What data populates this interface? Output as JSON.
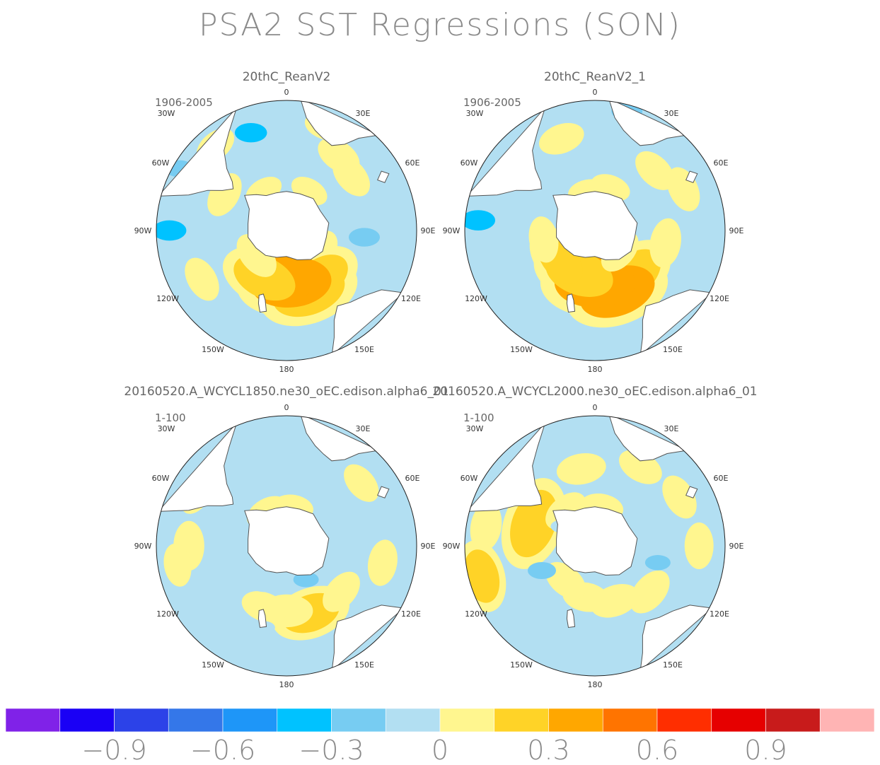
{
  "chart_data": {
    "type": "polar-contour-map",
    "title": "PSA2 SST Regressions (SON)",
    "panels": [
      {
        "title": "20thC_ReanV2",
        "period": "1906-2005",
        "positive_blobs": [
          [
            125,
            12,
            0.12
          ],
          [
            145,
            18,
            0.2
          ],
          [
            160,
            20,
            0.28
          ],
          [
            175,
            16,
            0.32
          ],
          [
            190,
            14,
            0.3
          ],
          [
            205,
            16,
            0.22
          ],
          [
            230,
            12,
            0.12
          ],
          [
            240,
            30,
            0.1
          ],
          [
            300,
            22,
            0.1
          ],
          [
            320,
            34,
            0.08
          ],
          [
            35,
            28,
            0.1
          ],
          [
            50,
            26,
            0.1
          ],
          [
            20,
            34,
            0.06
          ],
          [
            330,
            14,
            0.05
          ],
          [
            30,
            14,
            0.05
          ]
        ],
        "negative_blobs": [
          [
            270,
            36,
            -0.35
          ],
          [
            300,
            38,
            -0.25
          ],
          [
            95,
            24,
            -0.3
          ],
          [
            340,
            32,
            -0.32
          ]
        ]
      },
      {
        "title": "20thC_ReanV2_1",
        "period": "1906-2005",
        "positive_blobs": [
          [
            140,
            18,
            0.22
          ],
          [
            160,
            20,
            0.3
          ],
          [
            180,
            16,
            0.32
          ],
          [
            200,
            14,
            0.25
          ],
          [
            230,
            14,
            0.16
          ],
          [
            260,
            16,
            0.1
          ],
          [
            340,
            30,
            0.1
          ],
          [
            45,
            26,
            0.1
          ],
          [
            65,
            30,
            0.1
          ],
          [
            100,
            22,
            0.12
          ],
          [
            130,
            10,
            0.1
          ],
          [
            350,
            12,
            0.06
          ],
          [
            20,
            14,
            0.06
          ]
        ],
        "negative_blobs": [
          [
            275,
            36,
            -0.35
          ],
          [
            15,
            38,
            -0.3
          ],
          [
            300,
            34,
            -0.1
          ]
        ]
      },
      {
        "title": "20160520.A_WCYCL1850.ne30_oEC.edison.alpha6_01",
        "period": "1-100",
        "positive_blobs": [
          [
            270,
            30,
            0.12
          ],
          [
            260,
            34,
            0.08
          ],
          [
            160,
            22,
            0.18
          ],
          [
            180,
            20,
            0.14
          ],
          [
            200,
            20,
            0.1
          ],
          [
            130,
            22,
            0.1
          ],
          [
            100,
            30,
            0.1
          ],
          [
            330,
            12,
            0.08
          ],
          [
            50,
            30,
            0.08
          ],
          [
            300,
            32,
            0.08
          ],
          [
            10,
            12,
            0.06
          ]
        ],
        "negative_blobs": [
          [
            150,
            12,
            -0.2
          ],
          [
            210,
            14,
            -0.15
          ],
          [
            195,
            26,
            -0.12
          ],
          [
            260,
            12,
            -0.1
          ],
          [
            80,
            14,
            -0.08
          ],
          [
            345,
            28,
            -0.1
          ]
        ]
      },
      {
        "title": "20160520.A_WCYCL2000.ne30_oEC.edison.alpha6_01",
        "period": "1-100",
        "positive_blobs": [
          [
            290,
            20,
            0.25
          ],
          [
            280,
            34,
            0.12
          ],
          [
            255,
            36,
            0.15
          ],
          [
            350,
            24,
            0.12
          ],
          [
            30,
            28,
            0.1
          ],
          [
            60,
            30,
            0.1
          ],
          [
            90,
            32,
            0.1
          ],
          [
            130,
            22,
            0.12
          ],
          [
            160,
            18,
            0.12
          ],
          [
            190,
            16,
            0.1
          ],
          [
            220,
            14,
            0.1
          ],
          [
            320,
            14,
            0.1
          ],
          [
            10,
            12,
            0.08
          ]
        ],
        "negative_blobs": [
          [
            245,
            18,
            -0.25
          ],
          [
            105,
            20,
            -0.2
          ],
          [
            200,
            28,
            -0.12
          ],
          [
            300,
            12,
            -0.12
          ]
        ]
      }
    ],
    "longitude_labels": [
      "0",
      "30E",
      "60E",
      "90E",
      "120E",
      "150E",
      "180",
      "150W",
      "120W",
      "90W",
      "60W",
      "30W"
    ],
    "colorbar": {
      "levels": [
        -1.05,
        -0.9,
        -0.75,
        -0.6,
        -0.45,
        -0.3,
        -0.15,
        0,
        0.15,
        0.3,
        0.45,
        0.6,
        0.75,
        0.9,
        1.05
      ],
      "colors": [
        "#8022e8",
        "#1a00f5",
        "#2c42e8",
        "#3477e9",
        "#1e96f8",
        "#00c2ff",
        "#77ccf2",
        "#b2dff2",
        "#fff68f",
        "#ffd327",
        "#ffa700",
        "#ff7400",
        "#ff2e00",
        "#e60000",
        "#c81b1b",
        "#ffb4b4"
      ],
      "tick_labels": [
        "−0.9",
        "−0.6",
        "−0.3",
        "0",
        "0.3",
        "0.6",
        "0.9"
      ],
      "tick_values": [
        -0.9,
        -0.6,
        -0.3,
        0,
        0.3,
        0.6,
        0.9
      ]
    }
  },
  "colors": {
    "land": "#ffffff",
    "coast": "#555555",
    "text": "#666666",
    "title": "#8a8a8a"
  }
}
